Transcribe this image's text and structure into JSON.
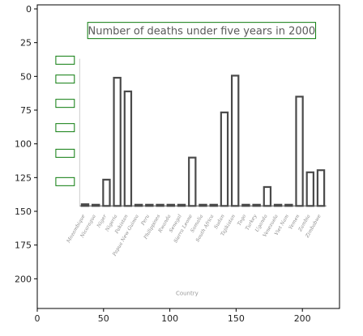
{
  "chart_data": {
    "type": "bar",
    "title": "Number of deaths under five years in 2000",
    "xlabel": "Country",
    "ylabel": "",
    "categories": [
      "Mozambique",
      "Nicaragua",
      "Niger",
      "Nigeria",
      "Pakistan",
      "Papua New Guinea",
      "Peru",
      "Philippines",
      "Rwanda",
      "Senegal",
      "Sierra Leone",
      "Somalia",
      "South Africa",
      "Sudan",
      "Tajikistan",
      "Togo",
      "Turkey",
      "Uganda",
      "Venezuela",
      "Viet Nam",
      "Yemen",
      "Zambia",
      "Zimbabwe"
    ],
    "values": [
      8000,
      1500,
      125000,
      610000,
      545000,
      1200,
      4000,
      5500,
      2500,
      1000,
      230000,
      2500,
      3000,
      445000,
      620000,
      2000,
      1500,
      90000,
      600,
      900,
      520000,
      160000,
      170000
    ],
    "y_ticks_visible": [
      "",
      "",
      "",
      "",
      "",
      ""
    ],
    "x_ticks": [
      0,
      50,
      100,
      150,
      200
    ],
    "y_ticks": [
      0,
      25,
      50,
      75,
      100,
      125,
      150,
      175,
      200
    ],
    "ylim": [
      0,
      700000
    ],
    "legend": "none",
    "grid": false,
    "bar_color": "#4a4a4a"
  }
}
